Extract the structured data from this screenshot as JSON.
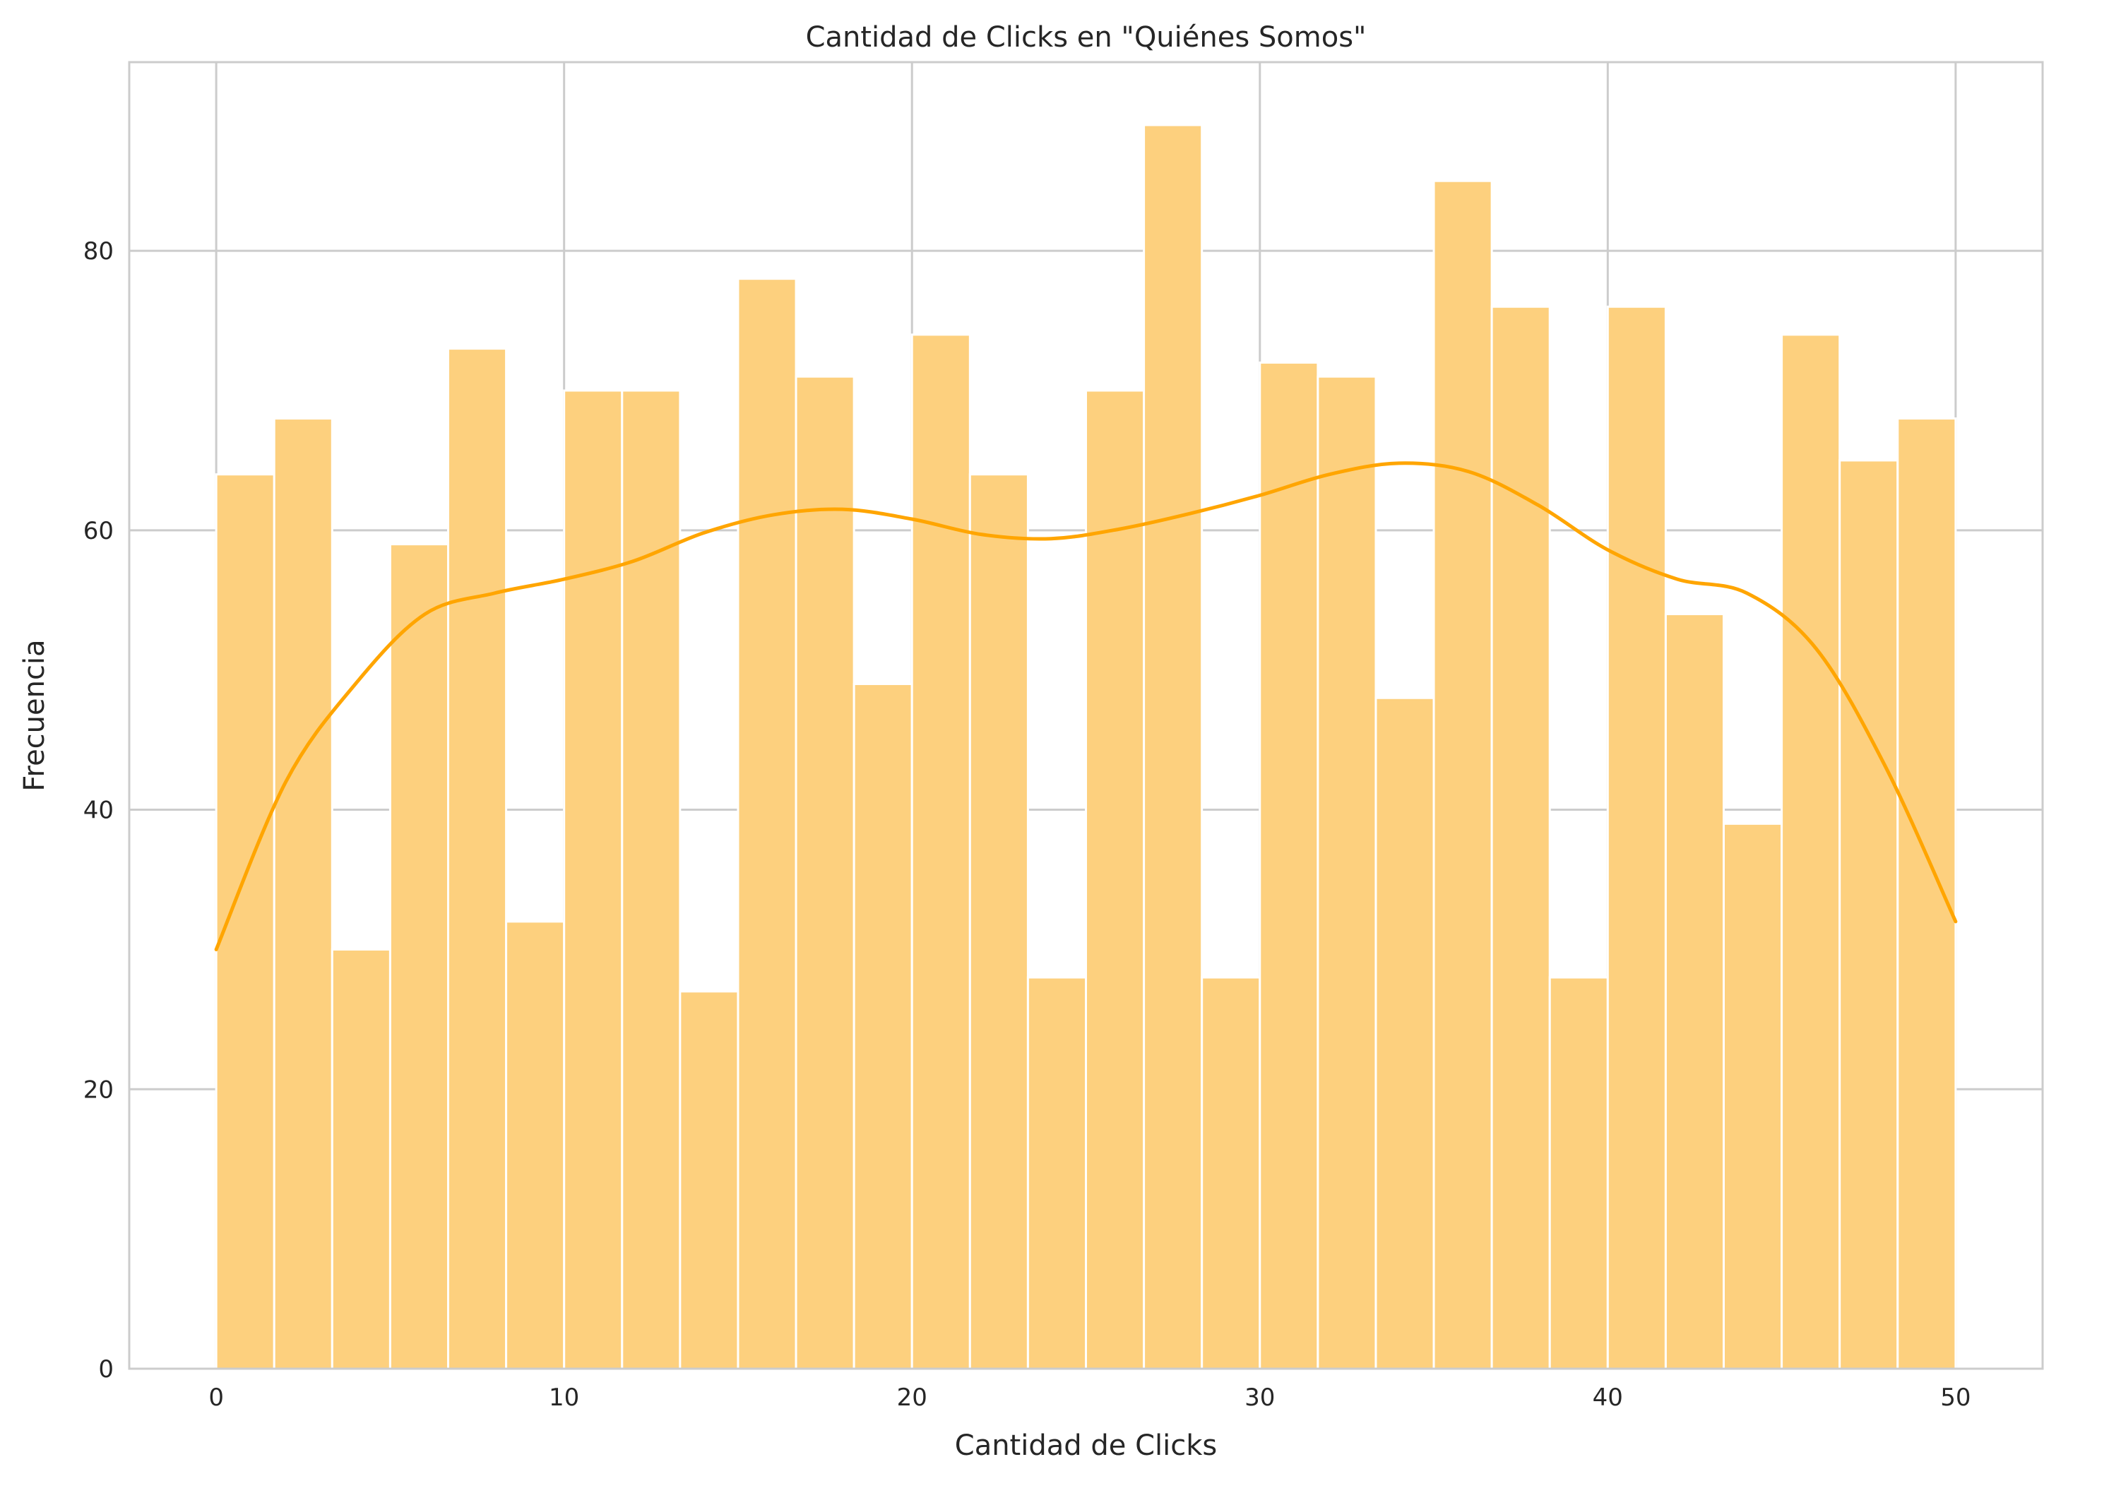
{
  "chart_data": {
    "type": "bar",
    "title": "Cantidad de Clicks en \"Quiénes Somos\"",
    "xlabel": "Cantidad de Clicks",
    "ylabel": "Frecuencia",
    "xlim": [
      -2.5,
      52.5
    ],
    "ylim": [
      0,
      93.5
    ],
    "xticks": [
      0,
      10,
      20,
      30,
      40,
      50
    ],
    "yticks": [
      0,
      20,
      40,
      60,
      80
    ],
    "bin_edges": [
      0,
      1.6667,
      3.3333,
      5,
      6.6667,
      8.3333,
      10,
      11.6667,
      13.3333,
      15,
      16.6667,
      18.3333,
      20,
      21.6667,
      23.3333,
      25,
      26.6667,
      28.3333,
      30,
      31.6667,
      33.3333,
      35,
      36.6667,
      38.3333,
      40,
      41.6667,
      43.3333,
      45,
      46.6667,
      48.3333,
      50
    ],
    "values": [
      64,
      68,
      30,
      59,
      73,
      32,
      70,
      70,
      27,
      78,
      71,
      49,
      74,
      64,
      28,
      70,
      89,
      28,
      72,
      71,
      48,
      85,
      76,
      28,
      76,
      54,
      39,
      74,
      65,
      68
    ],
    "kde": {
      "x": [
        0,
        2,
        4,
        6,
        8,
        10,
        12,
        14,
        16,
        18,
        20,
        22,
        24,
        26,
        28,
        30,
        32,
        34,
        36,
        38,
        40,
        42,
        44,
        46,
        48,
        50
      ],
      "y": [
        30,
        42,
        49,
        54,
        55.5,
        56.5,
        57.8,
        59.8,
        61.1,
        61.5,
        60.8,
        59.7,
        59.4,
        60.1,
        61.2,
        62.5,
        64,
        64.8,
        64.2,
        61.8,
        58.6,
        56.5,
        55.5,
        51.5,
        43,
        32
      ]
    },
    "colors": {
      "bar_fill": "#fdd07e",
      "bar_edge": "#ffffff",
      "kde_line": "#ffa500",
      "grid": "#cccccc",
      "axes_edge": "#cccccc",
      "text": "#262626"
    },
    "grid": true
  }
}
